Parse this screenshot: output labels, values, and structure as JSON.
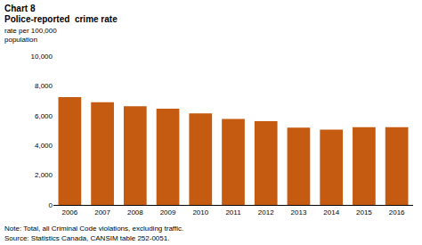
{
  "chart_data": {
    "type": "bar",
    "title": "Chart 8",
    "subtitle": "Police-reported  crime rate",
    "y_label": "rate per 100,000\npopulation",
    "notes": [
      "Note: Total, all Criminal Code violations, excluding traffic.",
      "Source: Statistics Canada, CANSIM table 252-0051."
    ],
    "categories": [
      "2006",
      "2007",
      "2008",
      "2009",
      "2010",
      "2011",
      "2012",
      "2013",
      "2014",
      "2015",
      "2016"
    ],
    "values": [
      7245,
      6908,
      6631,
      6461,
      6159,
      5779,
      5632,
      5195,
      5061,
      5232,
      5224
    ],
    "color": "#c55a11",
    "ylim": [
      0,
      10000
    ],
    "yticks": [
      0,
      {
        "value": 2000,
        "label": "2,000"
      },
      {
        "value": 4000,
        "label": "4,000"
      },
      {
        "value": 6000,
        "label": "6,000"
      },
      {
        "value": 8000,
        "label": "8,000"
      },
      {
        "value": 10000,
        "label": "10,000"
      }
    ],
    "grid": false
  }
}
